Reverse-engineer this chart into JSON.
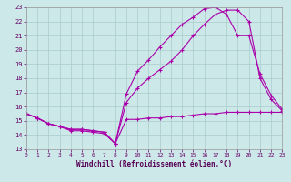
{
  "xlabel": "Windchill (Refroidissement éolien,°C)",
  "xlim": [
    0,
    23
  ],
  "ylim": [
    13,
    23
  ],
  "xticks": [
    0,
    1,
    2,
    3,
    4,
    5,
    6,
    7,
    8,
    9,
    10,
    11,
    12,
    13,
    14,
    15,
    16,
    17,
    18,
    19,
    20,
    21,
    22,
    23
  ],
  "yticks": [
    13,
    14,
    15,
    16,
    17,
    18,
    19,
    20,
    21,
    22,
    23
  ],
  "bg_color": "#cce8e8",
  "line_color": "#aa00aa",
  "grid_color": "#aacccc",
  "line1_x": [
    0,
    1,
    2,
    3,
    4,
    5,
    6,
    7,
    8,
    9,
    10,
    11,
    12,
    13,
    14,
    15,
    16,
    17,
    18,
    19,
    20,
    21,
    22,
    23
  ],
  "line1_y": [
    15.5,
    15.2,
    14.8,
    14.6,
    14.3,
    14.3,
    14.2,
    14.1,
    13.4,
    15.1,
    15.1,
    15.2,
    15.2,
    15.3,
    15.3,
    15.4,
    15.5,
    15.5,
    15.6,
    15.6,
    15.6,
    15.6,
    15.6,
    15.6
  ],
  "line2_x": [
    0,
    1,
    2,
    3,
    4,
    5,
    6,
    7,
    8,
    9,
    10,
    11,
    12,
    13,
    14,
    15,
    16,
    17,
    18,
    19,
    20,
    21,
    22,
    23
  ],
  "line2_y": [
    15.5,
    15.2,
    14.8,
    14.6,
    14.4,
    14.4,
    14.3,
    14.2,
    13.4,
    16.3,
    17.3,
    18.0,
    18.6,
    19.2,
    20.0,
    21.0,
    21.8,
    22.5,
    22.8,
    22.8,
    22.0,
    18.0,
    16.5,
    15.7
  ],
  "line3_x": [
    0,
    1,
    2,
    3,
    4,
    5,
    6,
    7,
    8,
    9,
    10,
    11,
    12,
    13,
    14,
    15,
    16,
    17,
    18,
    19,
    20,
    21,
    22,
    23
  ],
  "line3_y": [
    15.5,
    15.2,
    14.8,
    14.6,
    14.4,
    14.4,
    14.3,
    14.2,
    13.4,
    16.9,
    18.5,
    19.3,
    20.2,
    21.0,
    21.8,
    22.3,
    22.9,
    23.0,
    22.5,
    21.0,
    21.0,
    18.3,
    16.8,
    15.8
  ]
}
